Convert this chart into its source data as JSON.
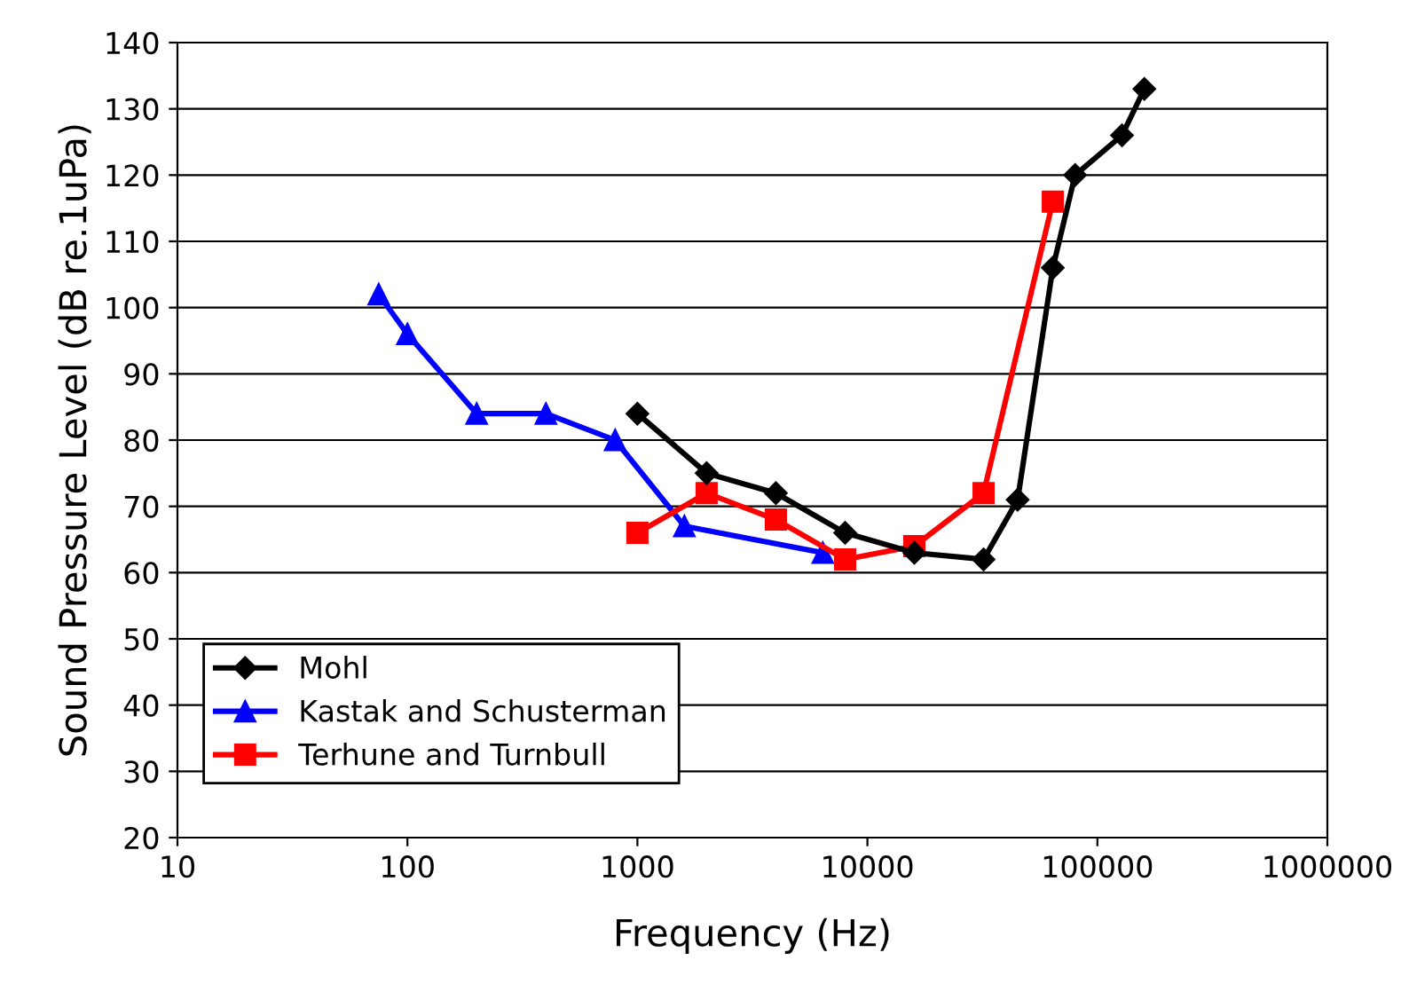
{
  "chart_data": {
    "type": "line",
    "xlabel": "Frequency (Hz)",
    "ylabel": "Sound Pressure Level (dB re.1uPa)",
    "log": "x",
    "xlim": [
      10,
      1000000
    ],
    "xticks": [
      10,
      100,
      1000,
      10000,
      100000,
      1000000
    ],
    "ylim": [
      20,
      140
    ],
    "yticks": [
      20,
      30,
      40,
      50,
      60,
      70,
      80,
      90,
      100,
      110,
      120,
      130,
      140
    ],
    "grid": "y",
    "legend": "bottom left",
    "series": [
      {
        "name": "Mohl",
        "color": "#000000",
        "marker": "diamond",
        "x": [
          1000,
          2000,
          4000,
          8000,
          16000,
          32000,
          45000,
          64000,
          80000,
          128000,
          160000
        ],
        "values": [
          84,
          75,
          72,
          66,
          63,
          62,
          71,
          106,
          120,
          126,
          133
        ]
      },
      {
        "name": "Kastak and Schusterman",
        "color": "#0000ff",
        "marker": "triangle",
        "x": [
          75,
          100,
          200,
          400,
          800,
          1600,
          6400
        ],
        "values": [
          102,
          96,
          84,
          84,
          80,
          67,
          63
        ]
      },
      {
        "name": "Terhune and Turnbull",
        "color": "#ff0000",
        "marker": "square",
        "x": [
          1000,
          2000,
          4000,
          8000,
          16000,
          32000,
          64000
        ],
        "values": [
          66,
          72,
          68,
          62,
          64,
          72,
          116
        ]
      }
    ]
  }
}
